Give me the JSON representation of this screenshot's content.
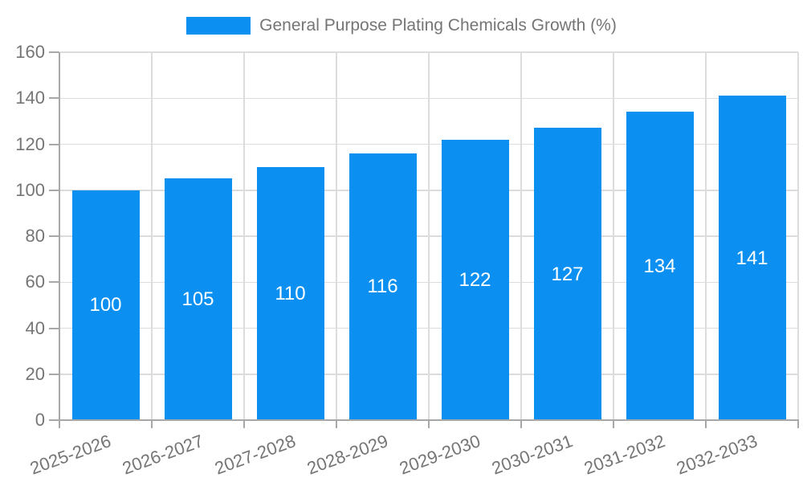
{
  "chart_data": {
    "type": "bar",
    "title": "General Purpose Plating Chemicals Growth (%)",
    "legend_position": "top",
    "categories": [
      "2025-2026",
      "2026-2027",
      "2027-2028",
      "2028-2029",
      "2029-2030",
      "2030-2031",
      "2031-2032",
      "2032-2033"
    ],
    "values": [
      100,
      105,
      110,
      116,
      122,
      127,
      134,
      141
    ],
    "xlabel": "",
    "ylabel": "",
    "ylim": [
      0,
      160
    ],
    "ytick_step": 20,
    "yticks": [
      0,
      20,
      40,
      60,
      80,
      100,
      120,
      140,
      160
    ],
    "grid": true,
    "x_label_rotation_deg": -20,
    "colors": {
      "bar": "#0b90f2",
      "bar_value_text": "#ffffff",
      "axis_text": "#757575",
      "legend_text": "#757575",
      "gridline": "#dcdcdc",
      "axis_line": "#a8a8a8",
      "background": "#ffffff"
    }
  }
}
